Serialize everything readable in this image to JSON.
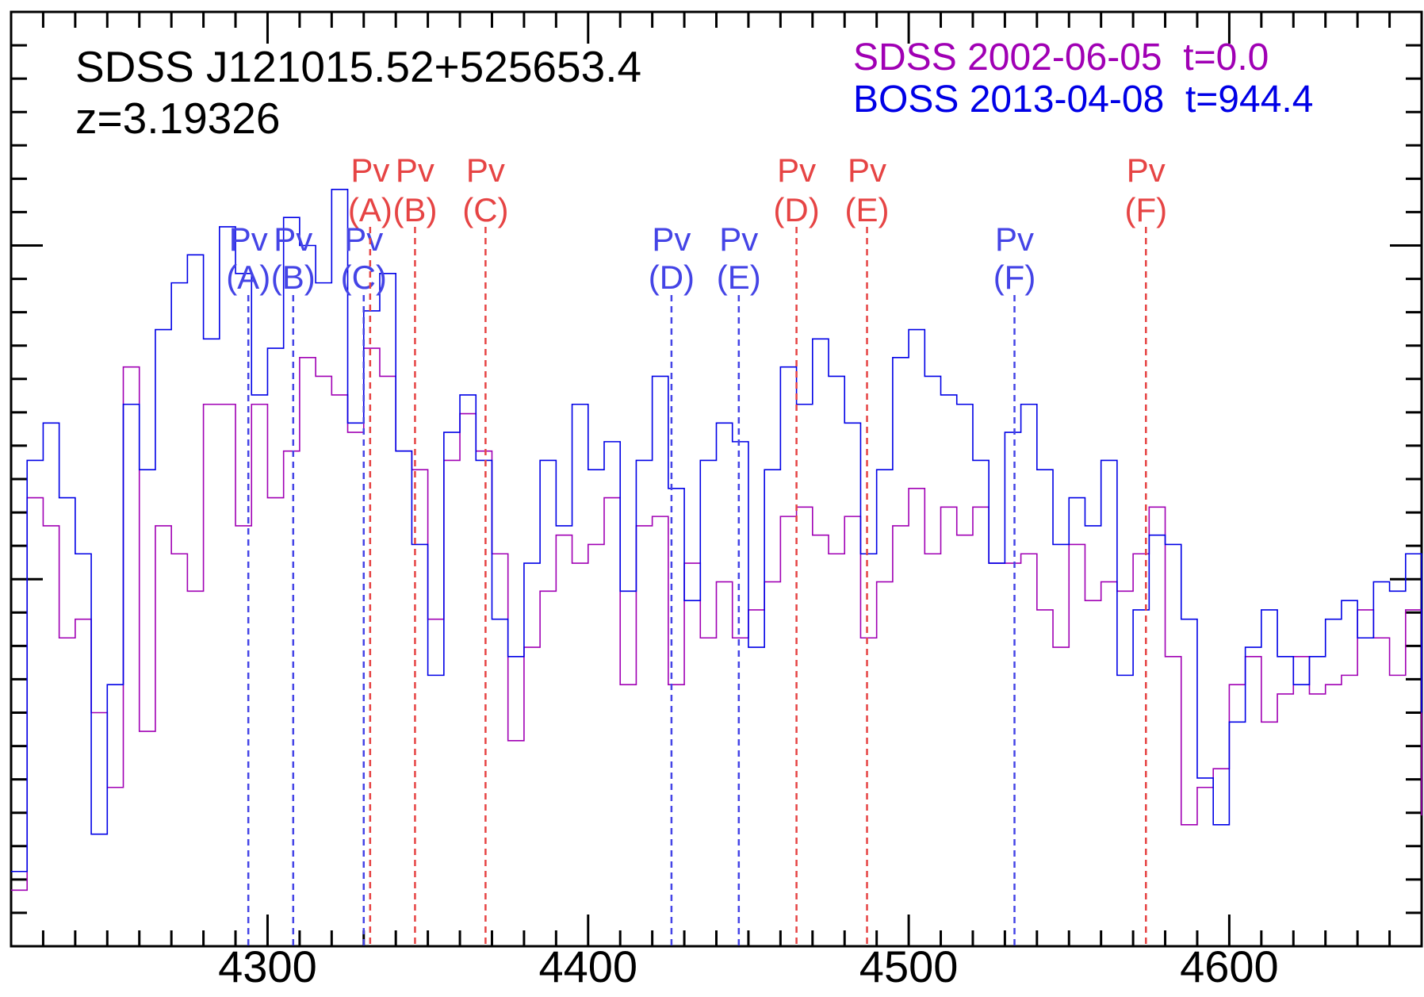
{
  "chart_data": {
    "type": "line",
    "title": "SDSS J121015.52+525653.4",
    "subtitle": "z=3.19326",
    "xlim": [
      4220,
      4660
    ],
    "ylim": [
      0,
      1
    ],
    "x_ticks": [
      {
        "value": 4300,
        "label": "4300"
      },
      {
        "value": 4400,
        "label": "4400"
      },
      {
        "value": 4500,
        "label": "4500"
      },
      {
        "value": 4600,
        "label": "4600"
      }
    ],
    "legend": {
      "placement": "top-right",
      "entries": [
        {
          "survey": "SDSS",
          "date": "2002-06-05",
          "t": "t=0.0",
          "color": "#a000b4"
        },
        {
          "survey": "BOSS",
          "date": "2013-04-08",
          "t": "t=944.4",
          "color": "#0000e6"
        }
      ]
    },
    "series": [
      {
        "color": "#a000b4",
        "x": [
          4220,
          4225,
          4230,
          4235,
          4240,
          4245,
          4250,
          4255,
          4260,
          4265,
          4270,
          4275,
          4280,
          4285,
          4290,
          4295,
          4300,
          4305,
          4310,
          4315,
          4320,
          4325,
          4330,
          4335,
          4340,
          4345,
          4350,
          4355,
          4360,
          4365,
          4370,
          4375,
          4380,
          4385,
          4390,
          4395,
          4400,
          4405,
          4410,
          4415,
          4420,
          4425,
          4430,
          4435,
          4440,
          4445,
          4450,
          4455,
          4460,
          4465,
          4470,
          4475,
          4480,
          4485,
          4490,
          4495,
          4500,
          4505,
          4510,
          4515,
          4520,
          4525,
          4530,
          4535,
          4540,
          4545,
          4550,
          4555,
          4560,
          4565,
          4570,
          4575,
          4580,
          4585,
          4590,
          4595,
          4600,
          4605,
          4610,
          4615,
          4620,
          4625,
          4630,
          4635,
          4640,
          4645,
          4650,
          4655,
          4660
        ],
        "y": [
          0.06,
          0.48,
          0.45,
          0.33,
          0.35,
          0.25,
          0.17,
          0.62,
          0.23,
          0.45,
          0.42,
          0.38,
          0.58,
          0.58,
          0.45,
          0.58,
          0.48,
          0.53,
          0.63,
          0.61,
          0.59,
          0.55,
          0.64,
          0.61,
          0.53,
          0.51,
          0.35,
          0.52,
          0.57,
          0.53,
          0.42,
          0.22,
          0.32,
          0.38,
          0.44,
          0.41,
          0.43,
          0.48,
          0.28,
          0.45,
          0.46,
          0.28,
          0.41,
          0.33,
          0.39,
          0.33,
          0.36,
          0.39,
          0.46,
          0.47,
          0.44,
          0.42,
          0.46,
          0.33,
          0.39,
          0.45,
          0.49,
          0.42,
          0.47,
          0.44,
          0.47,
          0.41,
          0.41,
          0.42,
          0.36,
          0.32,
          0.43,
          0.37,
          0.39,
          0.38,
          0.42,
          0.47,
          0.31,
          0.13,
          0.17,
          0.19,
          0.28,
          0.31,
          0.24,
          0.27,
          0.31,
          0.27,
          0.28,
          0.29,
          0.36,
          0.33,
          0.29,
          0.36,
          0.14
        ]
      },
      {
        "color": "#0000e6",
        "x": [
          4220,
          4225,
          4230,
          4235,
          4240,
          4245,
          4250,
          4255,
          4260,
          4265,
          4270,
          4275,
          4280,
          4285,
          4290,
          4295,
          4300,
          4305,
          4310,
          4315,
          4320,
          4325,
          4330,
          4335,
          4340,
          4345,
          4350,
          4355,
          4360,
          4365,
          4370,
          4375,
          4380,
          4385,
          4390,
          4395,
          4400,
          4405,
          4410,
          4415,
          4420,
          4425,
          4430,
          4435,
          4440,
          4445,
          4450,
          4455,
          4460,
          4465,
          4470,
          4475,
          4480,
          4485,
          4490,
          4495,
          4500,
          4505,
          4510,
          4515,
          4520,
          4525,
          4530,
          4535,
          4540,
          4545,
          4550,
          4555,
          4560,
          4565,
          4570,
          4575,
          4580,
          4585,
          4590,
          4595,
          4600,
          4605,
          4610,
          4615,
          4620,
          4625,
          4630,
          4635,
          4640,
          4645,
          4650,
          4655,
          4660
        ],
        "y": [
          0.08,
          0.52,
          0.56,
          0.48,
          0.42,
          0.12,
          0.28,
          0.58,
          0.51,
          0.66,
          0.71,
          0.74,
          0.65,
          0.77,
          0.72,
          0.59,
          0.64,
          0.78,
          0.75,
          0.71,
          0.81,
          0.56,
          0.68,
          0.72,
          0.53,
          0.43,
          0.29,
          0.55,
          0.59,
          0.52,
          0.35,
          0.31,
          0.41,
          0.52,
          0.45,
          0.58,
          0.51,
          0.54,
          0.38,
          0.52,
          0.61,
          0.49,
          0.37,
          0.52,
          0.56,
          0.54,
          0.32,
          0.51,
          0.62,
          0.58,
          0.65,
          0.61,
          0.56,
          0.42,
          0.51,
          0.63,
          0.66,
          0.61,
          0.59,
          0.58,
          0.52,
          0.41,
          0.55,
          0.58,
          0.51,
          0.43,
          0.48,
          0.45,
          0.52,
          0.29,
          0.36,
          0.44,
          0.43,
          0.35,
          0.18,
          0.13,
          0.24,
          0.32,
          0.36,
          0.31,
          0.28,
          0.31,
          0.35,
          0.37,
          0.33,
          0.39,
          0.38,
          0.42,
          0.25
        ]
      }
    ],
    "annotations": [
      {
        "label": "Pv",
        "sub": "(A)",
        "x": 4294,
        "color": "#4444e6",
        "row": "lower"
      },
      {
        "label": "Pv",
        "sub": "(B)",
        "x": 4308,
        "color": "#4444e6",
        "row": "lower"
      },
      {
        "label": "Pv",
        "sub": "(C)",
        "x": 4330,
        "color": "#4444e6",
        "row": "lower"
      },
      {
        "label": "Pv",
        "sub": "(D)",
        "x": 4426,
        "color": "#4444e6",
        "row": "lower"
      },
      {
        "label": "Pv",
        "sub": "(E)",
        "x": 4447,
        "color": "#4444e6",
        "row": "lower"
      },
      {
        "label": "Pv",
        "sub": "(F)",
        "x": 4533,
        "color": "#4444e6",
        "row": "lower"
      },
      {
        "label": "Pv",
        "sub": "(A)",
        "x": 4332,
        "color": "#e64444",
        "row": "upper"
      },
      {
        "label": "Pv",
        "sub": "(B)",
        "x": 4346,
        "color": "#e64444",
        "row": "upper"
      },
      {
        "label": "Pv",
        "sub": "(C)",
        "x": 4368,
        "color": "#e64444",
        "row": "upper"
      },
      {
        "label": "Pv",
        "sub": "(D)",
        "x": 4465,
        "color": "#e64444",
        "row": "upper"
      },
      {
        "label": "Pv",
        "sub": "(E)",
        "x": 4487,
        "color": "#e64444",
        "row": "upper"
      },
      {
        "label": "Pv",
        "sub": "(F)",
        "x": 4574,
        "color": "#e64444",
        "row": "upper"
      }
    ]
  }
}
